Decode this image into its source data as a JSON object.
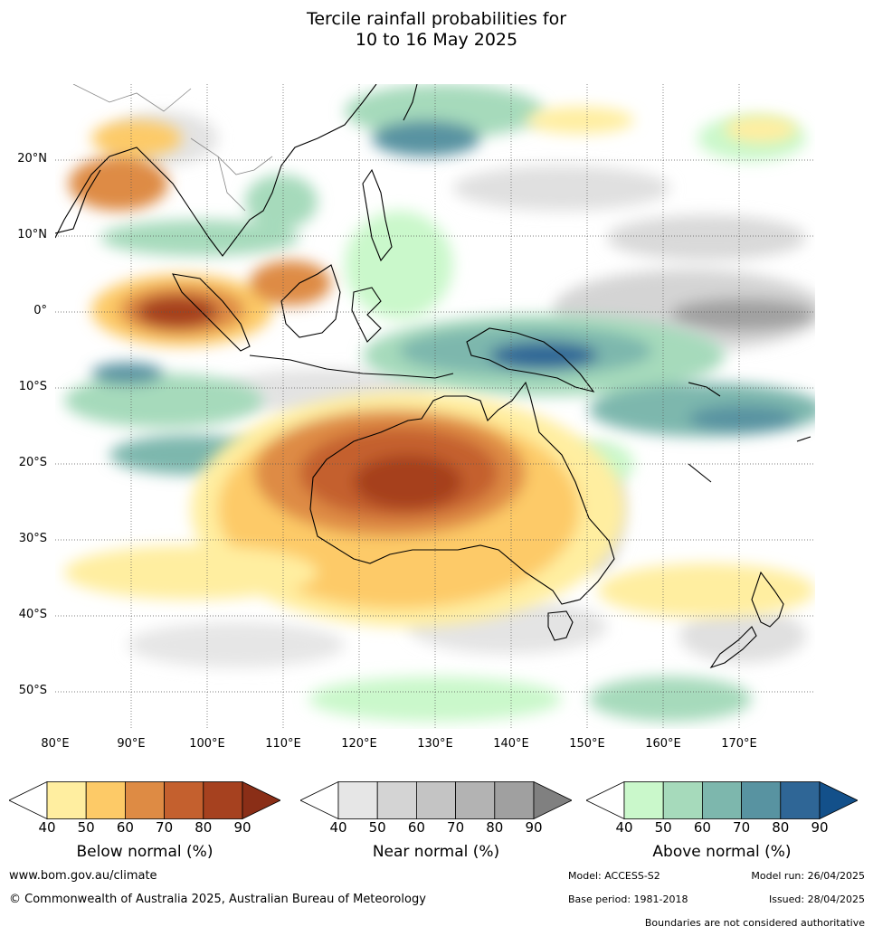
{
  "title_line1": "Tercile rainfall probabilities for",
  "title_line2": "10 to 16 May 2025",
  "longitude_labels": [
    "80°E",
    "90°E",
    "100°E",
    "110°E",
    "120°E",
    "130°E",
    "140°E",
    "150°E",
    "160°E",
    "170°E"
  ],
  "latitude_labels": [
    "20°N",
    "10°N",
    "0°",
    "10°S",
    "20°S",
    "30°S",
    "40°S",
    "50°S"
  ],
  "colorbars": {
    "below": {
      "title": "Below normal (%)",
      "ticks": [
        "40",
        "50",
        "60",
        "70",
        "80",
        "90"
      ],
      "colors": [
        "#ffffff",
        "#ffeea0",
        "#fdca67",
        "#de8b44",
        "#c4602e",
        "#a6411f",
        "#8a2e17"
      ]
    },
    "near": {
      "title": "Near normal (%)",
      "ticks": [
        "40",
        "50",
        "60",
        "70",
        "80",
        "90"
      ],
      "colors": [
        "#ffffff",
        "#e6e6e6",
        "#d4d4d4",
        "#c4c4c4",
        "#b3b3b3",
        "#a0a0a0",
        "#808080"
      ]
    },
    "above": {
      "title": "Above normal (%)",
      "ticks": [
        "40",
        "50",
        "60",
        "70",
        "80",
        "90"
      ],
      "colors": [
        "#ffffff",
        "#caf8cb",
        "#a6dabb",
        "#7db7ad",
        "#5893a1",
        "#2f6696",
        "#13508a"
      ]
    }
  },
  "footer": {
    "website": "www.bom.gov.au/climate",
    "copyright": "© Commonwealth of Australia 2025, Australian Bureau of Meteorology",
    "model": "Model: ACCESS-S2",
    "model_run": "Model run: 26/04/2025",
    "base_period": "Base period: 1981-2018",
    "issued": "Issued: 28/04/2025",
    "boundaries_note": "Boundaries are not considered authoritative"
  }
}
